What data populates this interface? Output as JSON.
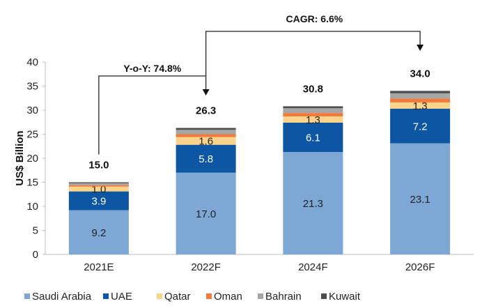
{
  "chart_data": {
    "type": "bar",
    "stacked": true,
    "title": "",
    "xlabel": "",
    "ylabel": "US$ Billion",
    "ylim": [
      0,
      40
    ],
    "yticks": [
      0,
      5,
      10,
      15,
      20,
      25,
      30,
      35,
      40
    ],
    "categories": [
      "2021E",
      "2022F",
      "2024F",
      "2026F"
    ],
    "series": [
      {
        "name": "Saudi Arabia",
        "color": "#7da7d4",
        "values": [
          9.2,
          17.0,
          21.3,
          23.1
        ],
        "labels": [
          "9.2",
          "17.0",
          "21.3",
          "23.1"
        ],
        "label_color": "#222222"
      },
      {
        "name": "UAE",
        "color": "#0c56a3",
        "values": [
          3.9,
          5.8,
          6.1,
          7.2
        ],
        "labels": [
          "3.9",
          "5.8",
          "6.1",
          "7.2"
        ],
        "label_color": "#ffffff"
      },
      {
        "name": "Qatar",
        "color": "#fbd38a",
        "values": [
          1.0,
          1.6,
          1.3,
          1.3
        ],
        "labels": [
          "1.0",
          "1.6",
          "1.3",
          "1.3"
        ],
        "label_color": "#222222"
      },
      {
        "name": "Oman",
        "color": "#f47a3c",
        "values": [
          0.3,
          0.6,
          0.7,
          0.8
        ]
      },
      {
        "name": "Bahrain",
        "color": "#a6a6a6",
        "values": [
          0.4,
          0.9,
          1.0,
          1.1
        ]
      },
      {
        "name": "Kuwait",
        "color": "#4d4d4d",
        "values": [
          0.2,
          0.4,
          0.4,
          0.5
        ]
      }
    ],
    "totals": [
      "15.0",
      "26.3",
      "30.8",
      "34.0"
    ],
    "annotations": [
      {
        "text": "Y-o-Y: 74.8%",
        "from": "2021E",
        "to": "2022F"
      },
      {
        "text": "CAGR: 6.6%",
        "from": "2022F",
        "to": "2026F"
      }
    ],
    "grid": false,
    "legend": "bottom"
  }
}
